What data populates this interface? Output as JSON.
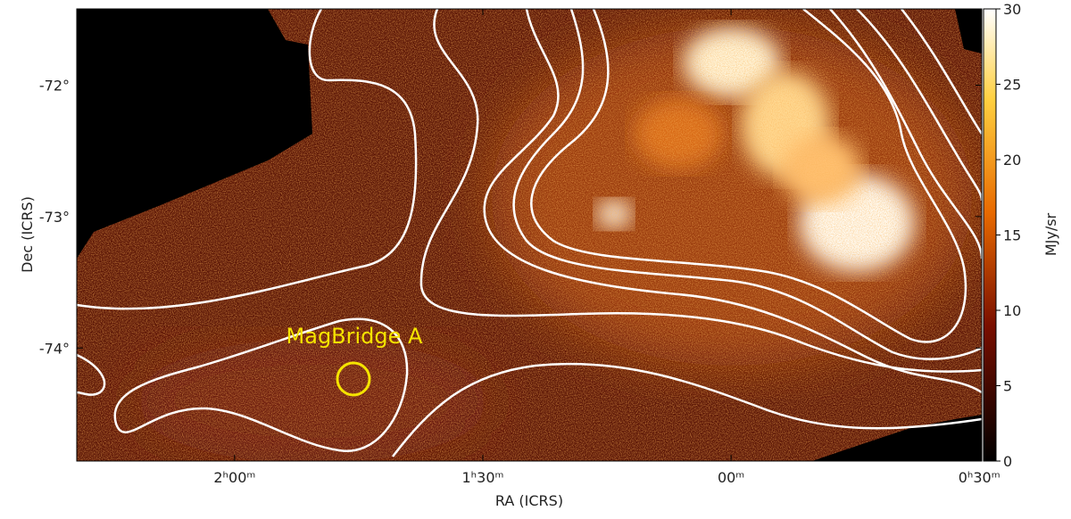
{
  "chart_data": {
    "type": "image",
    "xlabel": "RA (ICRS)",
    "ylabel": "Dec (ICRS)",
    "xlim": [
      2.318,
      0.495
    ],
    "xticks": [
      {
        "value": 2.0,
        "label": "2ʰ00ᵐ"
      },
      {
        "value": 1.5,
        "label": "1ʰ30ᵐ"
      },
      {
        "value": 1.0,
        "label": "00ᵐ"
      },
      {
        "value": 0.5,
        "label": "0ʰ30ᵐ"
      }
    ],
    "ylim": [
      -74.86,
      -71.42
    ],
    "yticks": [
      {
        "value": -72,
        "label": "-72°"
      },
      {
        "value": -73,
        "label": "-73°"
      },
      {
        "value": -74,
        "label": "-74°"
      }
    ],
    "colorbar": {
      "label": "MJy/sr",
      "lim": [
        0,
        30
      ],
      "ticks": [
        0,
        5,
        10,
        15,
        20,
        25,
        30
      ]
    },
    "annotation": {
      "text": "MagBridge A",
      "color": "#f5e400"
    },
    "contour_color": "#ffffff"
  }
}
